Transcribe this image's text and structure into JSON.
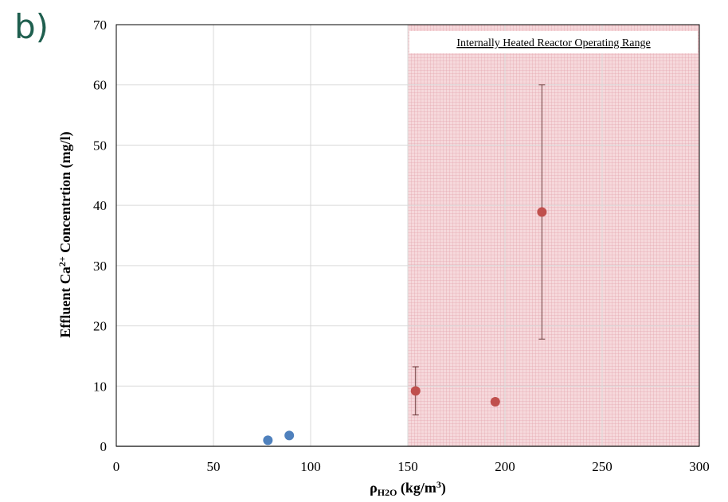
{
  "panel_label": "b)",
  "chart_data": {
    "type": "scatter",
    "title": "",
    "xlabel": "ρH2O (kg/m³)",
    "xlabel_parts": {
      "main": "ρ",
      "sub": "H2O",
      "rest": " (kg/m",
      "sup": "3",
      "end": ")"
    },
    "ylabel": "Effluent Ca²⁺ Concentrtion (mg/l)",
    "ylabel_parts": {
      "pre": "Effluent Ca",
      "sup": "2+",
      "post": " Concentrtion (mg/l)"
    },
    "xlim": [
      0,
      300
    ],
    "ylim": [
      0,
      70
    ],
    "xticks": [
      0,
      50,
      100,
      150,
      200,
      250,
      300
    ],
    "yticks": [
      0,
      10,
      20,
      30,
      40,
      50,
      60,
      70
    ],
    "grid": true,
    "shaded_region": {
      "x_start": 150,
      "x_end": 300,
      "label": "Internally Heated Reactor Operating Range",
      "color": "#f2c2c8"
    },
    "series": [
      {
        "color": "#4f81bd",
        "points": [
          {
            "x": 78,
            "y": 1.0
          },
          {
            "x": 89,
            "y": 1.8
          }
        ]
      },
      {
        "color": "#c0504d",
        "points": [
          {
            "x": 154,
            "y": 9.2,
            "err_low": 5.2,
            "err_high": 13.2
          },
          {
            "x": 195,
            "y": 7.4
          },
          {
            "x": 219,
            "y": 38.9,
            "err_low": 17.8,
            "err_high": 60.0
          }
        ]
      }
    ]
  }
}
